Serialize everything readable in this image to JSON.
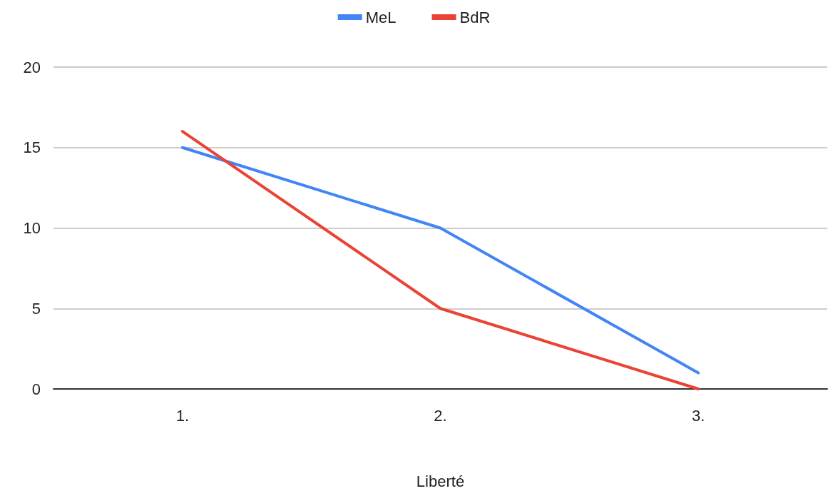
{
  "chart_data": {
    "type": "line",
    "xlabel": "Liberté",
    "categories": [
      "1.",
      "2.",
      "3."
    ],
    "series": [
      {
        "name": "MeL",
        "color": "#4285f4",
        "values": [
          15,
          10,
          1
        ]
      },
      {
        "name": "BdR",
        "color": "#ea4335",
        "values": [
          16,
          5,
          0
        ]
      }
    ],
    "ylim": [
      0,
      20
    ],
    "yticks": [
      0,
      5,
      10,
      15,
      20
    ],
    "grid": "y",
    "legend": "top",
    "marker": "none",
    "line_style": "solid"
  }
}
